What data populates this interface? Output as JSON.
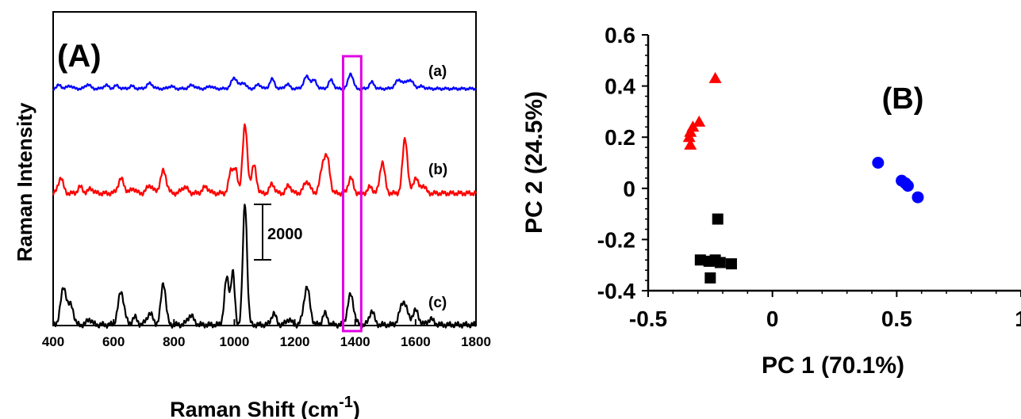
{
  "chart_data": [
    {
      "type": "line",
      "panel_label": "(A)",
      "xlabel": "Raman Shift (cm",
      "xlabel_sup": "-1",
      "xlabel_close": ")",
      "ylabel": "Raman Intensity",
      "xlim": [
        400,
        1800
      ],
      "xticks": [
        400,
        600,
        800,
        1000,
        1200,
        1400,
        1600,
        1800
      ],
      "scale_bar_label": "2000",
      "highlight_range": [
        1360,
        1420
      ],
      "highlight_color": "#e100e1",
      "series": [
        {
          "name": "(a)",
          "color": "#0000ff",
          "baseline": 0,
          "peaks": [
            [
              420,
              8,
              8
            ],
            [
              455,
              7,
              8
            ],
            [
              515,
              10,
              8
            ],
            [
              575,
              8,
              8
            ],
            [
              610,
              7,
              8
            ],
            [
              660,
              6,
              8
            ],
            [
              720,
              12,
              10
            ],
            [
              790,
              6,
              8
            ],
            [
              860,
              8,
              10
            ],
            [
              920,
              6,
              8
            ],
            [
              1000,
              25,
              10
            ],
            [
              1030,
              14,
              8
            ],
            [
              1080,
              10,
              8
            ],
            [
              1125,
              22,
              8
            ],
            [
              1175,
              10,
              8
            ],
            [
              1240,
              28,
              10
            ],
            [
              1265,
              18,
              8
            ],
            [
              1320,
              20,
              8
            ],
            [
              1385,
              35,
              8
            ],
            [
              1455,
              15,
              8
            ],
            [
              1545,
              20,
              12
            ],
            [
              1580,
              20,
              12
            ],
            [
              1620,
              5,
              10
            ]
          ]
        },
        {
          "name": "(b)",
          "color": "#ff0000",
          "baseline": 0,
          "peaks": [
            [
              425,
              20,
              8
            ],
            [
              490,
              8,
              8
            ],
            [
              525,
              6,
              8
            ],
            [
              625,
              18,
              10
            ],
            [
              665,
              6,
              8
            ],
            [
              720,
              10,
              10
            ],
            [
              765,
              28,
              10
            ],
            [
              835,
              8,
              10
            ],
            [
              905,
              8,
              10
            ],
            [
              990,
              30,
              8
            ],
            [
              1005,
              25,
              6
            ],
            [
              1035,
              85,
              8
            ],
            [
              1065,
              35,
              8
            ],
            [
              1125,
              12,
              8
            ],
            [
              1180,
              10,
              8
            ],
            [
              1240,
              15,
              10
            ],
            [
              1295,
              38,
              10
            ],
            [
              1310,
              30,
              8
            ],
            [
              1385,
              20,
              8
            ],
            [
              1450,
              8,
              8
            ],
            [
              1490,
              40,
              8
            ],
            [
              1565,
              70,
              8
            ],
            [
              1600,
              20,
              8
            ],
            [
              1625,
              10,
              8
            ]
          ]
        },
        {
          "name": "(c)",
          "color": "#000000",
          "baseline": 0,
          "peaks": [
            [
              435,
              40,
              10
            ],
            [
              460,
              20,
              8
            ],
            [
              520,
              6,
              8
            ],
            [
              625,
              35,
              10
            ],
            [
              670,
              8,
              8
            ],
            [
              720,
              12,
              10
            ],
            [
              765,
              45,
              8
            ],
            [
              855,
              10,
              10
            ],
            [
              975,
              50,
              8
            ],
            [
              995,
              55,
              6
            ],
            [
              1035,
              130,
              7
            ],
            [
              1130,
              12,
              8
            ],
            [
              1180,
              6,
              8
            ],
            [
              1240,
              40,
              10
            ],
            [
              1300,
              12,
              8
            ],
            [
              1385,
              32,
              10
            ],
            [
              1455,
              15,
              8
            ],
            [
              1560,
              25,
              12
            ],
            [
              1600,
              15,
              10
            ],
            [
              1650,
              6,
              10
            ]
          ]
        }
      ]
    },
    {
      "type": "scatter",
      "panel_label": "(B)",
      "xlabel": "PC 1 (70.1%)",
      "ylabel": "PC 2 (24.5%)",
      "xlim": [
        -0.5,
        1
      ],
      "ylim": [
        -0.4,
        0.6
      ],
      "xtick_labels": [
        "-0.5",
        "0",
        "0.5",
        "1"
      ],
      "xtick_values": [
        -0.5,
        0,
        0.5,
        1
      ],
      "ytick_labels": [
        "-0.4",
        "-0.2",
        "0",
        "0.2",
        "0.4",
        "0.6"
      ],
      "ytick_values": [
        -0.4,
        -0.2,
        0,
        0.2,
        0.4,
        0.6
      ],
      "series": [
        {
          "color": "#ff0000",
          "marker": "triangle",
          "points": [
            [
              -0.23,
              0.43
            ],
            [
              -0.295,
              0.26
            ],
            [
              -0.32,
              0.24
            ],
            [
              -0.33,
              0.22
            ],
            [
              -0.335,
              0.2
            ],
            [
              -0.33,
              0.17
            ]
          ]
        },
        {
          "color": "#0000ff",
          "marker": "circle",
          "points": [
            [
              0.425,
              0.1
            ],
            [
              0.52,
              0.03
            ],
            [
              0.535,
              0.02
            ],
            [
              0.545,
              0.01
            ],
            [
              0.585,
              -0.035
            ]
          ]
        },
        {
          "color": "#000000",
          "marker": "square",
          "points": [
            [
              -0.22,
              -0.12
            ],
            [
              -0.29,
              -0.28
            ],
            [
              -0.255,
              -0.285
            ],
            [
              -0.23,
              -0.28
            ],
            [
              -0.21,
              -0.29
            ],
            [
              -0.165,
              -0.295
            ],
            [
              -0.25,
              -0.35
            ]
          ]
        }
      ]
    }
  ]
}
